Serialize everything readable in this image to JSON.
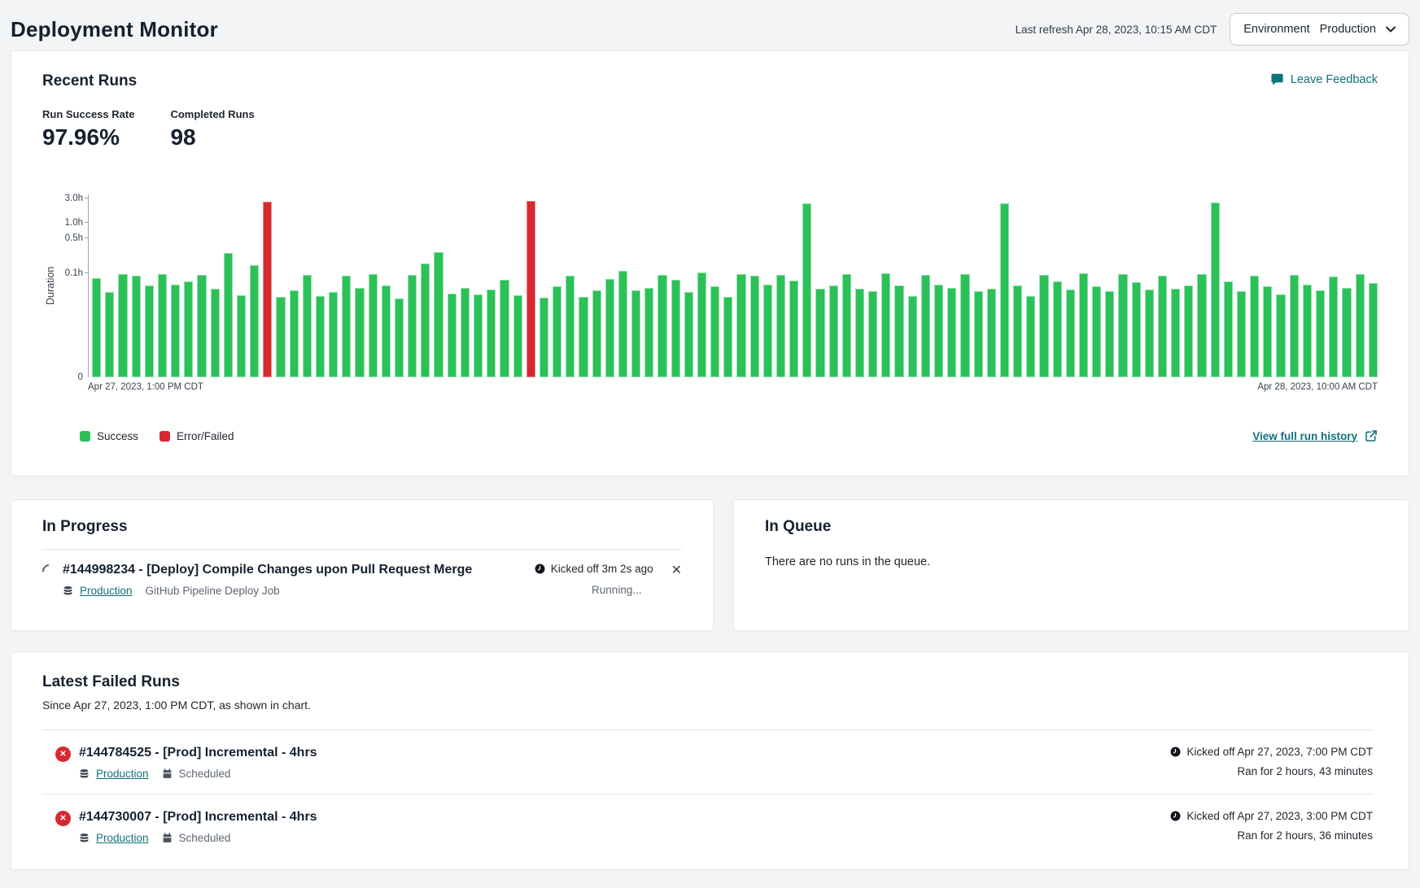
{
  "page": {
    "title": "Deployment Monitor",
    "last_refresh": "Last refresh Apr 28, 2023, 10:15 AM CDT",
    "environment": {
      "label": "Environment",
      "value": "Production"
    }
  },
  "recent_runs": {
    "title": "Recent Runs",
    "leave_feedback_label": "Leave Feedback",
    "stats": [
      {
        "label": "Run Success Rate",
        "value": "97.96%"
      },
      {
        "label": "Completed Runs",
        "value": "98"
      }
    ],
    "legend": [
      {
        "label": "Success",
        "color": "#2bc158"
      },
      {
        "label": "Error/Failed",
        "color": "#d7282f"
      }
    ],
    "view_history_label": "View full run history"
  },
  "chart_data": {
    "type": "bar",
    "title": "",
    "ylabel": "Duration",
    "xlabel": "",
    "scale": "log",
    "ylim_hours": [
      0,
      3
    ],
    "yticks": [
      {
        "label": "3.0h",
        "value": 3.0
      },
      {
        "label": "1.0h",
        "value": 1.0
      },
      {
        "label": "0.5h",
        "value": 0.5
      },
      {
        "label": "0.1h",
        "value": 0.1
      },
      {
        "label": "0",
        "value": 0
      }
    ],
    "x_start_label": "Apr 27, 2023, 1:00 PM CDT",
    "x_end_label": "Apr 28, 2023, 10:00 AM CDT",
    "bar_count": 98,
    "error_indices": [
      13,
      33
    ],
    "colors": {
      "success": "#2bc158",
      "error": "#d7282f"
    },
    "durations_hours": [
      0.08,
      0.042,
      0.096,
      0.09,
      0.058,
      0.095,
      0.06,
      0.068,
      0.094,
      0.05,
      0.25,
      0.037,
      0.145,
      2.6,
      0.034,
      0.046,
      0.092,
      0.036,
      0.042,
      0.088,
      0.052,
      0.095,
      0.058,
      0.032,
      0.094,
      0.155,
      0.26,
      0.04,
      0.052,
      0.038,
      0.047,
      0.074,
      0.037,
      2.72,
      0.033,
      0.055,
      0.09,
      0.034,
      0.046,
      0.078,
      0.11,
      0.046,
      0.052,
      0.094,
      0.075,
      0.042,
      0.105,
      0.055,
      0.034,
      0.096,
      0.088,
      0.06,
      0.092,
      0.072,
      2.4,
      0.05,
      0.058,
      0.095,
      0.05,
      0.044,
      0.102,
      0.058,
      0.036,
      0.094,
      0.06,
      0.052,
      0.096,
      0.044,
      0.05,
      2.45,
      0.058,
      0.036,
      0.094,
      0.068,
      0.048,
      0.102,
      0.056,
      0.044,
      0.098,
      0.066,
      0.048,
      0.09,
      0.05,
      0.058,
      0.096,
      2.55,
      0.07,
      0.045,
      0.088,
      0.055,
      0.038,
      0.092,
      0.06,
      0.046,
      0.085,
      0.052,
      0.095,
      0.064
    ]
  },
  "in_progress": {
    "title": "In Progress",
    "run": {
      "title": "#144998234 - [Deploy] Compile Changes upon Pull Request Merge",
      "environment": "Production",
      "job": "GitHub Pipeline Deploy Job",
      "kicked_off": "Kicked off 3m 2s ago",
      "status": "Running...",
      "close_label": "✕"
    }
  },
  "in_queue": {
    "title": "In Queue",
    "empty_message": "There are no runs in the queue."
  },
  "failed_runs": {
    "title": "Latest Failed Runs",
    "subtitle": "Since Apr 27, 2023, 1:00 PM CDT, as shown in chart.",
    "runs": [
      {
        "title": "#144784525 - [Prod] Incremental - 4hrs",
        "environment": "Production",
        "schedule": "Scheduled",
        "kicked_off": "Kicked off Apr 27, 2023, 7:00 PM CDT",
        "ran_for": "Ran for 2 hours, 43 minutes"
      },
      {
        "title": "#144730007 - [Prod] Incremental - 4hrs",
        "environment": "Production",
        "schedule": "Scheduled",
        "kicked_off": "Kicked off Apr 27, 2023, 3:00 PM CDT",
        "ran_for": "Ran for 2 hours, 36 minutes"
      }
    ]
  }
}
